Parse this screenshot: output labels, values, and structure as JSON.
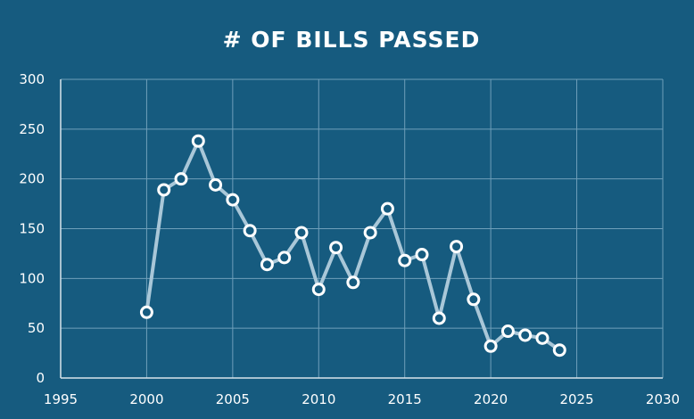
{
  "chart_data": {
    "type": "line",
    "title": "# OF BILLS PASSED",
    "xlabel": "",
    "ylabel": "",
    "xlim": [
      1995,
      2030
    ],
    "ylim": [
      0,
      300
    ],
    "xticks": [
      1995,
      2000,
      2005,
      2010,
      2015,
      2020,
      2025,
      2030
    ],
    "yticks": [
      0,
      50,
      100,
      150,
      200,
      250,
      300
    ],
    "grid": true,
    "legend": "none",
    "x": [
      2000,
      2001,
      2002,
      2003,
      2004,
      2005,
      2006,
      2007,
      2008,
      2009,
      2010,
      2011,
      2012,
      2013,
      2014,
      2015,
      2016,
      2017,
      2018,
      2019,
      2020,
      2021,
      2022,
      2023,
      2024
    ],
    "values": [
      66,
      189,
      200,
      238,
      194,
      179,
      148,
      114,
      121,
      146,
      89,
      131,
      96,
      146,
      170,
      118,
      124,
      60,
      132,
      79,
      32,
      47,
      43,
      40,
      28
    ]
  },
  "colors": {
    "background": "#165b7f",
    "grid": "#6f9fba",
    "axis": "#d8e4ec",
    "line": "#a9c7d8",
    "marker_fill": "#165b7f",
    "marker_stroke": "#ffffff",
    "text": "#ffffff"
  }
}
